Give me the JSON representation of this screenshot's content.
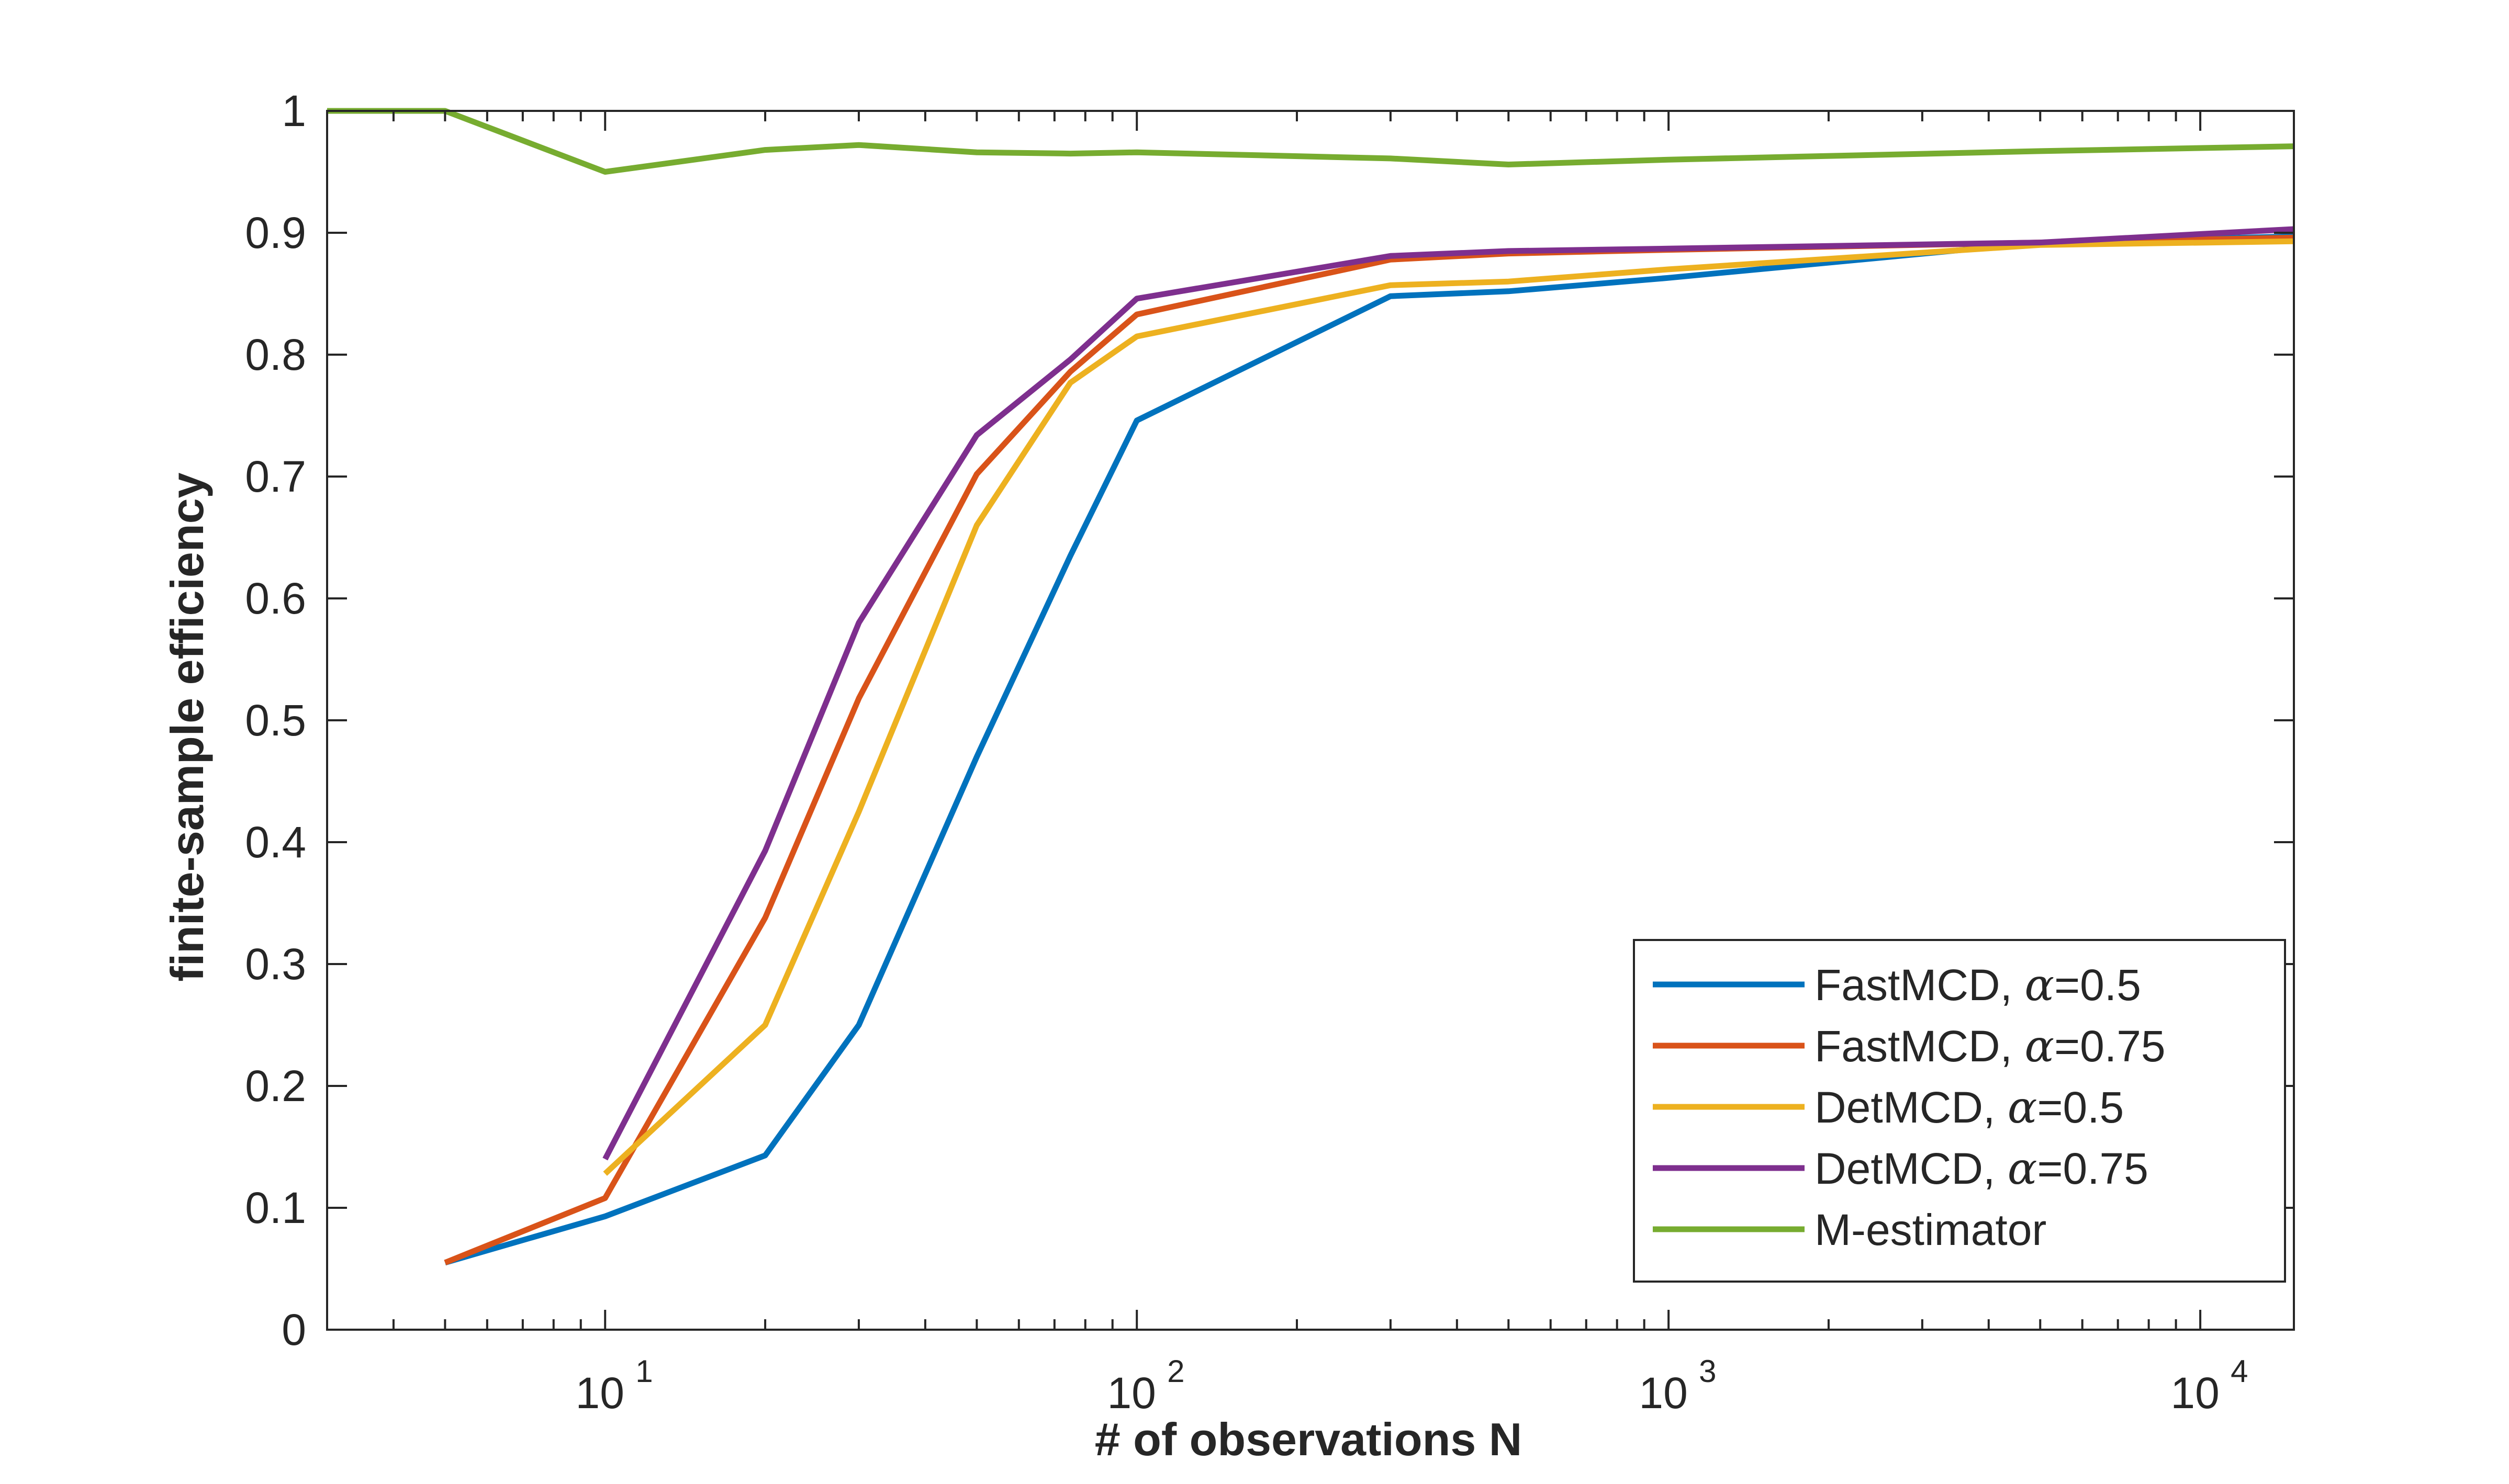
{
  "chart_data": {
    "type": "line",
    "title": "",
    "xlabel": "# of observations N",
    "ylabel": "finite-sample efficiency",
    "xscale": "log",
    "xlim": [
      3,
      15000
    ],
    "ylim": [
      0,
      1
    ],
    "x_ticks": [
      {
        "base": "10",
        "exp": "1",
        "value": 10
      },
      {
        "base": "10",
        "exp": "2",
        "value": 100
      },
      {
        "base": "10",
        "exp": "3",
        "value": 1000
      },
      {
        "base": "10",
        "exp": "4",
        "value": 10000
      }
    ],
    "y_ticks": [
      "0",
      "0.1",
      "0.2",
      "0.3",
      "0.4",
      "0.5",
      "0.6",
      "0.7",
      "0.8",
      "0.9",
      "1"
    ],
    "grid": false,
    "legend_position": "bottom-right",
    "series": [
      {
        "name_prefix": "FastMCD, ",
        "name_alpha": "α",
        "name_suffix": "=0.5",
        "color": "#0072BD",
        "x": [
          5,
          10,
          20,
          30,
          50,
          75,
          100,
          300,
          500,
          1000,
          5000,
          15000
        ],
        "y": [
          0.055,
          0.093,
          0.143,
          0.25,
          0.47,
          0.635,
          0.746,
          0.848,
          0.852,
          0.863,
          0.892,
          0.897
        ]
      },
      {
        "name_prefix": "FastMCD, ",
        "name_alpha": "α",
        "name_suffix": "=0.75",
        "color": "#D95319",
        "x": [
          5,
          10,
          20,
          30,
          50,
          75,
          100,
          300,
          500,
          1000,
          5000,
          15000
        ],
        "y": [
          0.055,
          0.108,
          0.338,
          0.518,
          0.702,
          0.786,
          0.833,
          0.878,
          0.883,
          0.886,
          0.892,
          0.896
        ]
      },
      {
        "name_prefix": "DetMCD, ",
        "name_alpha": "α",
        "name_suffix": "=0.5",
        "color": "#EDB120",
        "x": [
          10,
          20,
          30,
          50,
          75,
          100,
          300,
          500,
          1000,
          5000,
          15000
        ],
        "y": [
          0.128,
          0.25,
          0.425,
          0.66,
          0.777,
          0.815,
          0.857,
          0.86,
          0.87,
          0.89,
          0.893
        ]
      },
      {
        "name_prefix": "DetMCD, ",
        "name_alpha": "α",
        "name_suffix": "=0.75",
        "color": "#7E2F8E",
        "x": [
          10,
          20,
          30,
          50,
          75,
          100,
          300,
          500,
          1000,
          5000,
          15000
        ],
        "y": [
          0.14,
          0.393,
          0.58,
          0.734,
          0.796,
          0.846,
          0.881,
          0.885,
          0.887,
          0.892,
          0.903
        ]
      },
      {
        "name_prefix": "M-estimator",
        "name_alpha": "",
        "name_suffix": "",
        "color": "#77AC30",
        "x": [
          3,
          5,
          10,
          20,
          30,
          50,
          75,
          100,
          300,
          500,
          1000,
          5000,
          15000
        ],
        "y": [
          1.0,
          1.0,
          0.95,
          0.968,
          0.972,
          0.966,
          0.965,
          0.966,
          0.961,
          0.956,
          0.96,
          0.967,
          0.971
        ]
      }
    ]
  }
}
